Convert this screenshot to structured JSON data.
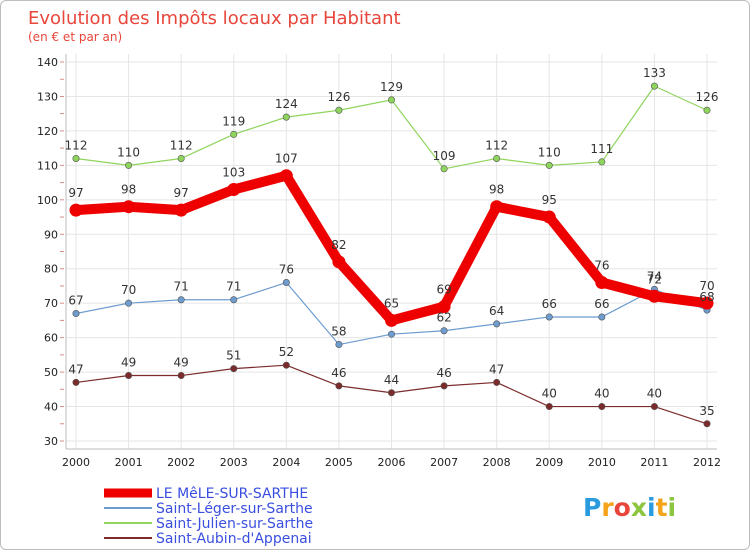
{
  "chart_data": {
    "type": "line",
    "title": "Evolution des Impôts locaux par Habitant",
    "subtitle": "(en € et par an)",
    "xlabel": "",
    "ylabel": "",
    "categories": [
      "2000",
      "2001",
      "2002",
      "2003",
      "2004",
      "2005",
      "2006",
      "2007",
      "2008",
      "2009",
      "2010",
      "2011",
      "2012"
    ],
    "ylim": [
      30,
      140
    ],
    "yticks": [
      30,
      40,
      50,
      60,
      70,
      80,
      90,
      100,
      110,
      120,
      130,
      140
    ],
    "grid": true,
    "legend_position": "bottom-left",
    "series": [
      {
        "name": "Saint-Aubin-d'Appenai",
        "color": "#7b2b2b",
        "values": [
          47,
          49,
          49,
          51,
          52,
          46,
          44,
          46,
          47,
          40,
          40,
          40,
          35
        ],
        "labels": [
          "47",
          "49",
          "49",
          "51",
          "52",
          "46",
          "44",
          "46",
          "47",
          "40",
          "40",
          "40",
          "35"
        ]
      },
      {
        "name": "Saint-Léger-sur-Sarthe",
        "color": "#6e9ccf",
        "values": [
          67,
          70,
          71,
          71,
          76,
          58,
          61,
          62,
          64,
          66,
          66,
          74,
          68
        ],
        "labels": [
          "67",
          "70",
          "71",
          "71",
          "76",
          "58",
          "",
          "62",
          "64",
          "66",
          "66",
          "74",
          "68"
        ]
      },
      {
        "name": "Saint-Julien-sur-Sarthe",
        "color": "#8fd45c",
        "values": [
          112,
          110,
          112,
          119,
          124,
          126,
          129,
          109,
          112,
          110,
          111,
          133,
          126
        ],
        "labels": [
          "112",
          "110",
          "112",
          "119",
          "124",
          "126",
          "129",
          "109",
          "112",
          "110",
          "111",
          "133",
          "126"
        ]
      },
      {
        "name": "LE MêLE-SUR-SARTHE",
        "color": "#ee0000",
        "values": [
          97,
          98,
          97,
          103,
          107,
          82,
          65,
          69,
          98,
          95,
          76,
          72,
          70
        ],
        "labels": [
          "97",
          "98",
          "97",
          "103",
          "107",
          "82",
          "65",
          "69",
          "98",
          "95",
          "76",
          "72",
          "70"
        ]
      }
    ],
    "legend_order": [
      "LE MêLE-SUR-SARTHE",
      "Saint-Léger-sur-Sarthe",
      "Saint-Julien-sur-Sarthe",
      "Saint-Aubin-d'Appenai"
    ],
    "highlight_series": "LE MêLE-SUR-SARTHE"
  },
  "brand": {
    "letters": [
      {
        "ch": "P",
        "color": "#2b9be0"
      },
      {
        "ch": "r",
        "color": "#f5a31a"
      },
      {
        "ch": "o",
        "color": "#e8463b"
      },
      {
        "ch": "x",
        "color": "#8cc63f"
      },
      {
        "ch": "i",
        "color": "#2b9be0"
      },
      {
        "ch": "t",
        "color": "#f5a31a"
      },
      {
        "ch": "i",
        "color": "#8cc63f"
      }
    ]
  },
  "colors": {
    "grid": "#e5e5e5",
    "axis": "#bbbbbb",
    "tick_mark": "#d98b8b",
    "legend_text": "#3a4fe0"
  }
}
